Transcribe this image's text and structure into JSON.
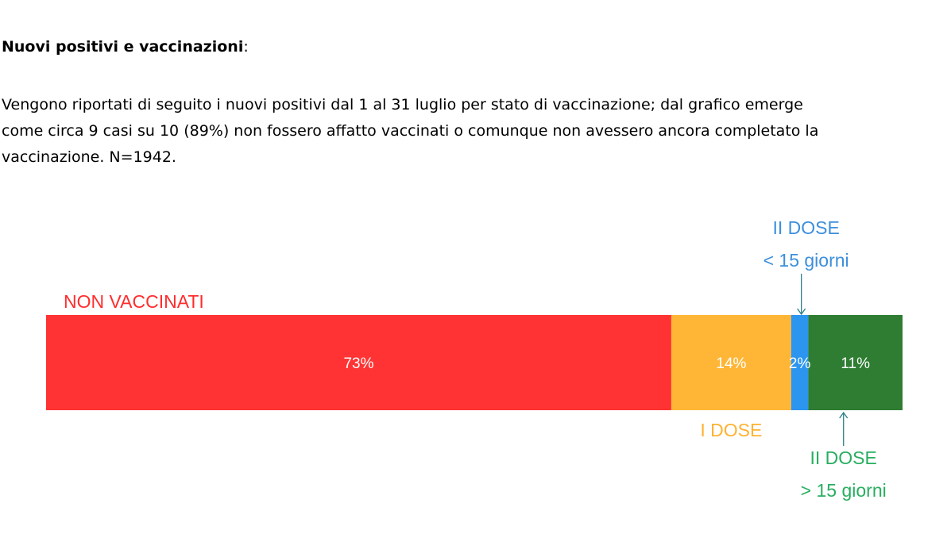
{
  "heading": {
    "bold": "Nuovi positivi e vaccinazioni",
    "suffix": ":"
  },
  "paragraph": {
    "lines": [
      "Vengono riportati di seguito i nuovi positivi dal 1 al 31 luglio per stato di vaccinazione; dal grafico emerge",
      "come circa 9 casi su 10 (89%) non fossero affatto vaccinati o comunque non avessero ancora completato la",
      "vaccinazione. N=1942."
    ]
  },
  "chart_data": {
    "type": "bar",
    "orientation": "horizontal-stacked",
    "title": "",
    "segments": [
      {
        "label_lines": [
          "NON VACCINATI"
        ],
        "value": 73,
        "value_label": "73%",
        "color": "#ff3333",
        "label_color": "#ff2d2d"
      },
      {
        "label_lines": [
          "I DOSE"
        ],
        "value": 14,
        "value_label": "14%",
        "color": "#ffb636",
        "label_color": "#ffb230"
      },
      {
        "label_lines": [
          "II DOSE",
          "< 15 giorni"
        ],
        "value": 2,
        "value_label": "2%",
        "color": "#2b95f0",
        "label_color": "#3d8fdc"
      },
      {
        "label_lines": [
          "II DOSE",
          "> 15 giorni"
        ],
        "value": 11,
        "value_label": "11%",
        "color": "#2e7d32",
        "label_color": "#27ae60"
      }
    ],
    "arrow_color": "#2a7f8a"
  }
}
